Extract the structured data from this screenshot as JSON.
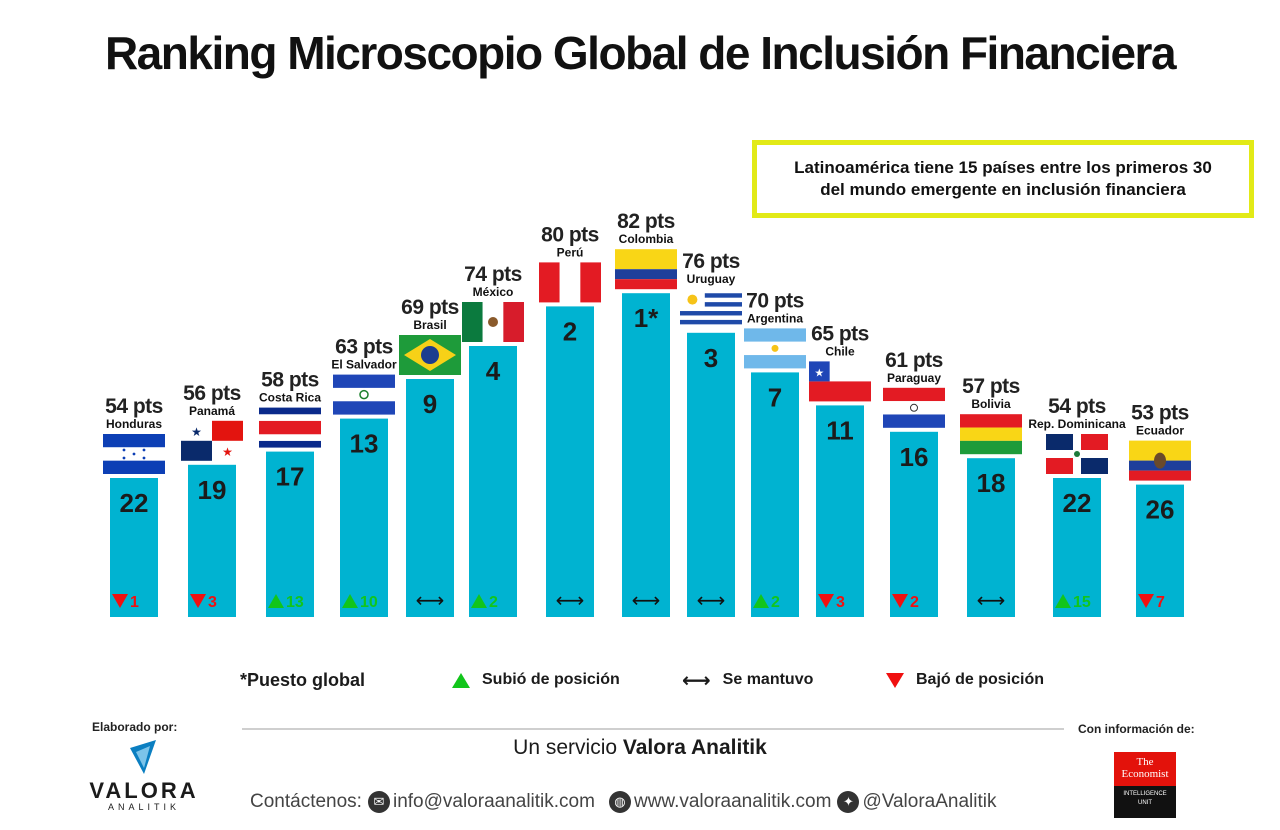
{
  "title": "Ranking Microscopio Global de Inclusión Financiera",
  "callout": {
    "line1": "Latinoamérica tiene 15 países entre los primeros 30",
    "line2": "del mundo emergente en inclusión financiera"
  },
  "chart_data": {
    "type": "bar",
    "title": "Ranking Microscopio Global de Inclusión Financiera",
    "bars": [
      {
        "country": "Honduras",
        "pts": 54,
        "pts_label": "54 pts",
        "rank": "22",
        "change": "down",
        "change_value": "1",
        "flag": "honduras"
      },
      {
        "country": "Panamá",
        "pts": 56,
        "pts_label": "56 pts",
        "rank": "19",
        "change": "down",
        "change_value": "3",
        "flag": "panama"
      },
      {
        "country": "Costa Rica",
        "pts": 58,
        "pts_label": "58 pts",
        "rank": "17",
        "change": "up",
        "change_value": "13",
        "flag": "costa-rica"
      },
      {
        "country": "El Salvador",
        "pts": 63,
        "pts_label": "63 pts",
        "rank": "13",
        "change": "up",
        "change_value": "10",
        "flag": "el-salvador"
      },
      {
        "country": "Brasil",
        "pts": 69,
        "pts_label": "69 pts",
        "rank": "9",
        "change": "same",
        "change_value": "",
        "flag": "brasil"
      },
      {
        "country": "México",
        "pts": 74,
        "pts_label": "74 pts",
        "rank": "4",
        "change": "up",
        "change_value": "2",
        "flag": "mexico"
      },
      {
        "country": "Perú",
        "pts": 80,
        "pts_label": "80 pts",
        "rank": "2",
        "change": "same",
        "change_value": "",
        "flag": "peru"
      },
      {
        "country": "Colombia",
        "pts": 82,
        "pts_label": "82 pts",
        "rank": "1*",
        "change": "same",
        "change_value": "",
        "flag": "colombia"
      },
      {
        "country": "Uruguay",
        "pts": 76,
        "pts_label": "76 pts",
        "rank": "3",
        "change": "same",
        "change_value": "",
        "flag": "uruguay"
      },
      {
        "country": "Argentina",
        "pts": 70,
        "pts_label": "70 pts",
        "rank": "7",
        "change": "up",
        "change_value": "2",
        "flag": "argentina"
      },
      {
        "country": "Chile",
        "pts": 65,
        "pts_label": "65 pts",
        "rank": "11",
        "change": "down",
        "change_value": "3",
        "flag": "chile"
      },
      {
        "country": "Paraguay",
        "pts": 61,
        "pts_label": "61 pts",
        "rank": "16",
        "change": "down",
        "change_value": "2",
        "flag": "paraguay"
      },
      {
        "country": "Bolivia",
        "pts": 57,
        "pts_label": "57 pts",
        "rank": "18",
        "change": "same",
        "change_value": "",
        "flag": "bolivia"
      },
      {
        "country": "Rep. Dominicana",
        "pts": 54,
        "pts_label": "54 pts",
        "rank": "22",
        "change": "up",
        "change_value": "15",
        "flag": "rep-dominicana"
      },
      {
        "country": "Ecuador",
        "pts": 53,
        "pts_label": "53 pts",
        "rank": "26",
        "change": "down",
        "change_value": "7",
        "flag": "ecuador"
      }
    ]
  },
  "legend": {
    "note": "*Puesto global",
    "up": "Subió de posición",
    "same": "Se mantuvo",
    "down": "Bajó de posición",
    "arrow_glyph": "⟷"
  },
  "footer": {
    "made_by": "Elaborado por:",
    "info_from": "Con información de:",
    "service_prefix": "Un servicio ",
    "service_brand": "Valora Analitik",
    "contact_label": "Contáctenos:",
    "email": "info@valoraanalitik.com",
    "website": "www.valoraanalitik.com",
    "twitter": "@ValoraAnalitik",
    "logo_main": "VALORA",
    "logo_sub": "ANALITIK",
    "economist_line1": "The",
    "economist_line2": "Economist",
    "economist_unit1": "INTELLIGENCE",
    "economist_unit2": "UNIT"
  },
  "colors": {
    "bar": "#00b3d1",
    "up": "#12c51b",
    "down": "#f01010",
    "callout_border": "#e2ea17"
  }
}
